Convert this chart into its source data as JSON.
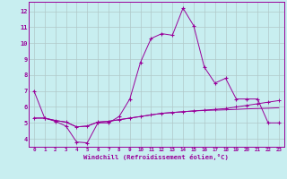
{
  "title": "",
  "xlabel": "Windchill (Refroidissement éolien,°C)",
  "bg_color": "#c8eef0",
  "line_color": "#990099",
  "grid_color": "#b0c8c8",
  "x_main": [
    0,
    1,
    2,
    3,
    4,
    5,
    6,
    7,
    8,
    9,
    10,
    11,
    12,
    13,
    14,
    15,
    16,
    17,
    18,
    19,
    20,
    21,
    22,
    23
  ],
  "y_main": [
    7.0,
    5.3,
    5.1,
    4.8,
    3.8,
    3.75,
    5.0,
    5.0,
    5.4,
    6.5,
    8.8,
    10.3,
    10.6,
    10.5,
    12.2,
    11.1,
    8.5,
    7.5,
    7.8,
    6.5,
    6.5,
    6.5,
    5.0,
    5.0
  ],
  "y_line2": [
    5.3,
    5.3,
    5.15,
    5.05,
    4.75,
    4.8,
    5.05,
    5.1,
    5.2,
    5.3,
    5.4,
    5.5,
    5.6,
    5.65,
    5.7,
    5.75,
    5.8,
    5.85,
    5.9,
    6.0,
    6.1,
    6.2,
    6.3,
    6.4
  ],
  "y_line3": [
    5.3,
    5.3,
    5.15,
    5.05,
    4.75,
    4.8,
    5.05,
    5.1,
    5.2,
    5.3,
    5.4,
    5.5,
    5.6,
    5.65,
    5.7,
    5.75,
    5.78,
    5.8,
    5.82,
    5.85,
    5.88,
    5.9,
    5.92,
    5.95
  ],
  "ylim": [
    3.5,
    12.6
  ],
  "xlim": [
    -0.5,
    23.5
  ],
  "yticks": [
    4,
    5,
    6,
    7,
    8,
    9,
    10,
    11,
    12
  ],
  "xticks": [
    0,
    1,
    2,
    3,
    4,
    5,
    6,
    7,
    8,
    9,
    10,
    11,
    12,
    13,
    14,
    15,
    16,
    17,
    18,
    19,
    20,
    21,
    22,
    23
  ]
}
